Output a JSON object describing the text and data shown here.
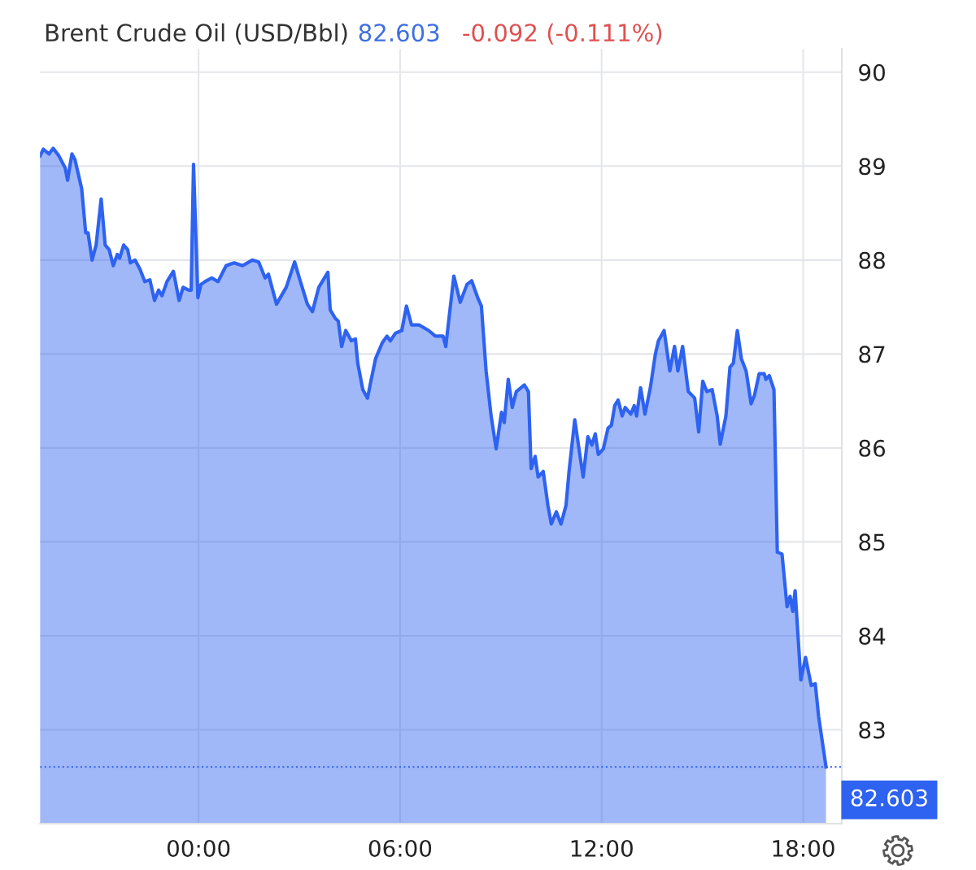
{
  "chart_data": {
    "type": "area",
    "title": "Brent Crude Oil (USD/Bbl)",
    "annotations": [
      "82.603",
      "-0.092 (-0.111%)"
    ],
    "x": [
      -4.72,
      -4.62,
      -4.45,
      -4.33,
      -4.16,
      -3.97,
      -3.9,
      -3.77,
      -3.68,
      -3.48,
      -3.36,
      -3.29,
      -3.17,
      -3.05,
      -2.9,
      -2.78,
      -2.66,
      -2.54,
      -2.42,
      -2.35,
      -2.23,
      -2.11,
      -2.03,
      -1.89,
      -1.74,
      -1.6,
      -1.45,
      -1.31,
      -1.19,
      -1.09,
      -0.94,
      -0.75,
      -0.58,
      -0.46,
      -0.29,
      -0.22,
      -0.15,
      -0.02,
      0.07,
      0.19,
      0.39,
      0.58,
      0.82,
      1.06,
      1.31,
      1.6,
      1.79,
      1.98,
      2.08,
      2.32,
      2.61,
      2.86,
      3.0,
      3.24,
      3.39,
      3.58,
      3.85,
      3.92,
      4.07,
      4.16,
      4.26,
      4.38,
      4.55,
      4.67,
      4.74,
      4.89,
      5.03,
      5.13,
      5.27,
      5.47,
      5.61,
      5.71,
      5.86,
      6.05,
      6.19,
      6.34,
      6.56,
      6.85,
      7.05,
      7.28,
      7.36,
      7.6,
      7.79,
      7.99,
      8.13,
      8.32,
      8.42,
      8.56,
      8.71,
      8.86,
      9.02,
      9.1,
      9.22,
      9.34,
      9.46,
      9.7,
      9.82,
      9.9,
      10.02,
      10.11,
      10.26,
      10.4,
      10.5,
      10.65,
      10.79,
      10.94,
      11.03,
      11.2,
      11.35,
      11.45,
      11.59,
      11.71,
      11.81,
      11.9,
      12.05,
      12.19,
      12.29,
      12.39,
      12.49,
      12.61,
      12.7,
      12.87,
      12.97,
      13.04,
      13.16,
      13.29,
      13.45,
      13.6,
      13.69,
      13.86,
      14.03,
      14.17,
      14.27,
      14.41,
      14.58,
      14.77,
      14.89,
      15.01,
      15.13,
      15.29,
      15.44,
      15.53,
      15.7,
      15.82,
      15.92,
      16.04,
      16.16,
      16.3,
      16.45,
      16.55,
      16.69,
      16.84,
      16.89,
      16.99,
      17.13,
      17.23,
      17.37,
      17.52,
      17.61,
      17.69,
      17.76,
      17.93,
      18.07,
      18.24,
      18.36,
      18.46,
      18.68
    ],
    "series": [
      {
        "color": "#2e62f0",
        "values": [
          89.11,
          89.18,
          89.13,
          89.19,
          89.11,
          88.98,
          88.85,
          89.13,
          89.07,
          88.76,
          88.29,
          88.29,
          88.0,
          88.16,
          88.65,
          88.16,
          88.11,
          87.94,
          88.06,
          88.02,
          88.16,
          88.11,
          87.97,
          88.0,
          87.9,
          87.77,
          87.79,
          87.57,
          87.68,
          87.62,
          87.77,
          87.88,
          87.57,
          87.71,
          87.68,
          87.68,
          89.02,
          87.6,
          87.74,
          87.77,
          87.81,
          87.77,
          87.94,
          87.97,
          87.94,
          88.0,
          87.98,
          87.81,
          87.85,
          87.53,
          87.71,
          87.98,
          87.81,
          87.53,
          87.45,
          87.71,
          87.87,
          87.47,
          87.38,
          87.35,
          87.08,
          87.25,
          87.14,
          87.16,
          86.9,
          86.62,
          86.53,
          86.71,
          86.95,
          87.12,
          87.19,
          87.14,
          87.22,
          87.25,
          87.51,
          87.31,
          87.31,
          87.25,
          87.19,
          87.19,
          87.08,
          87.83,
          87.55,
          87.74,
          87.78,
          87.59,
          87.51,
          86.82,
          86.34,
          85.99,
          86.38,
          86.27,
          86.73,
          86.43,
          86.6,
          86.67,
          86.6,
          85.78,
          85.91,
          85.69,
          85.75,
          85.39,
          85.19,
          85.32,
          85.19,
          85.39,
          85.75,
          86.3,
          85.93,
          85.69,
          86.12,
          86.03,
          86.15,
          85.93,
          85.99,
          86.21,
          86.24,
          86.45,
          86.51,
          86.34,
          86.43,
          86.36,
          86.45,
          86.34,
          86.64,
          86.36,
          86.64,
          87.0,
          87.14,
          87.25,
          86.82,
          87.08,
          86.82,
          87.08,
          86.6,
          86.53,
          86.17,
          86.71,
          86.6,
          86.62,
          86.34,
          86.04,
          86.34,
          86.86,
          86.9,
          87.25,
          86.95,
          86.82,
          86.47,
          86.56,
          86.79,
          86.79,
          86.73,
          86.77,
          86.62,
          84.89,
          84.87,
          84.31,
          84.42,
          84.26,
          84.48,
          83.53,
          83.77,
          83.47,
          83.49,
          83.14,
          82.603
        ]
      }
    ],
    "xlim": [
      -4.72,
      19.15
    ],
    "xticks": [
      {
        "value": 0,
        "label": "00:00"
      },
      {
        "value": 6,
        "label": "06:00"
      },
      {
        "value": 12,
        "label": "12:00"
      },
      {
        "value": 18,
        "label": "18:00"
      }
    ],
    "ylim": [
      82,
      90.25
    ],
    "yticks": [
      83,
      84,
      85,
      86,
      87,
      88,
      89,
      90
    ],
    "ref_lines": [
      {
        "axis": "y",
        "value": 82.603,
        "label": "82.603",
        "color": "#2e62f0",
        "line_style": "dotted"
      }
    ],
    "grid": true
  }
}
